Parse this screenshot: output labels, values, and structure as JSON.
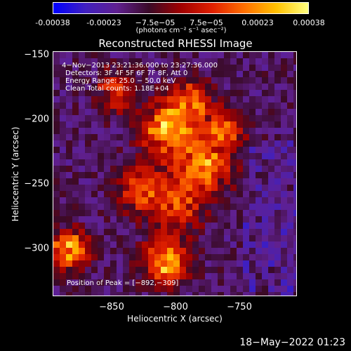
{
  "colorbar": {
    "ticks": [
      "-0.00038",
      "-0.00023",
      "−7.5e−05",
      "7.5e−05",
      "0.00023",
      "0.00038"
    ],
    "units": "(photons cm⁻² s⁻¹ asec⁻²)"
  },
  "title": "Reconstructed RHESSI Image",
  "annotations": {
    "time": "4−Nov−2013 23:21:36.000 to 23:27:36.000",
    "detectors": "Detectors: 3F 4F 5F 6F 7F 8F, Att 0",
    "energy": "Energy Range: 25.0 − 50.0 keV",
    "clean": "Clean     Total counts: 1.18E+04",
    "peak": "Position of Peak = [−892,−309]"
  },
  "axes": {
    "xlabel": "Heliocentric X (arcsec)",
    "ylabel": "Heliocentric Y (arcsec)",
    "xticks": [
      "−850",
      "−800",
      "−750"
    ],
    "yticks": [
      "−150",
      "−200",
      "−250",
      "−300"
    ]
  },
  "footer": "18−May−2022 01:23",
  "colors": {
    "background": "#000000",
    "colormap": [
      "#0000ff",
      "#4020c0",
      "#602090",
      "#3a0a28",
      "#a00000",
      "#e02000",
      "#ff7000",
      "#ffc000",
      "#ffff80"
    ]
  }
}
